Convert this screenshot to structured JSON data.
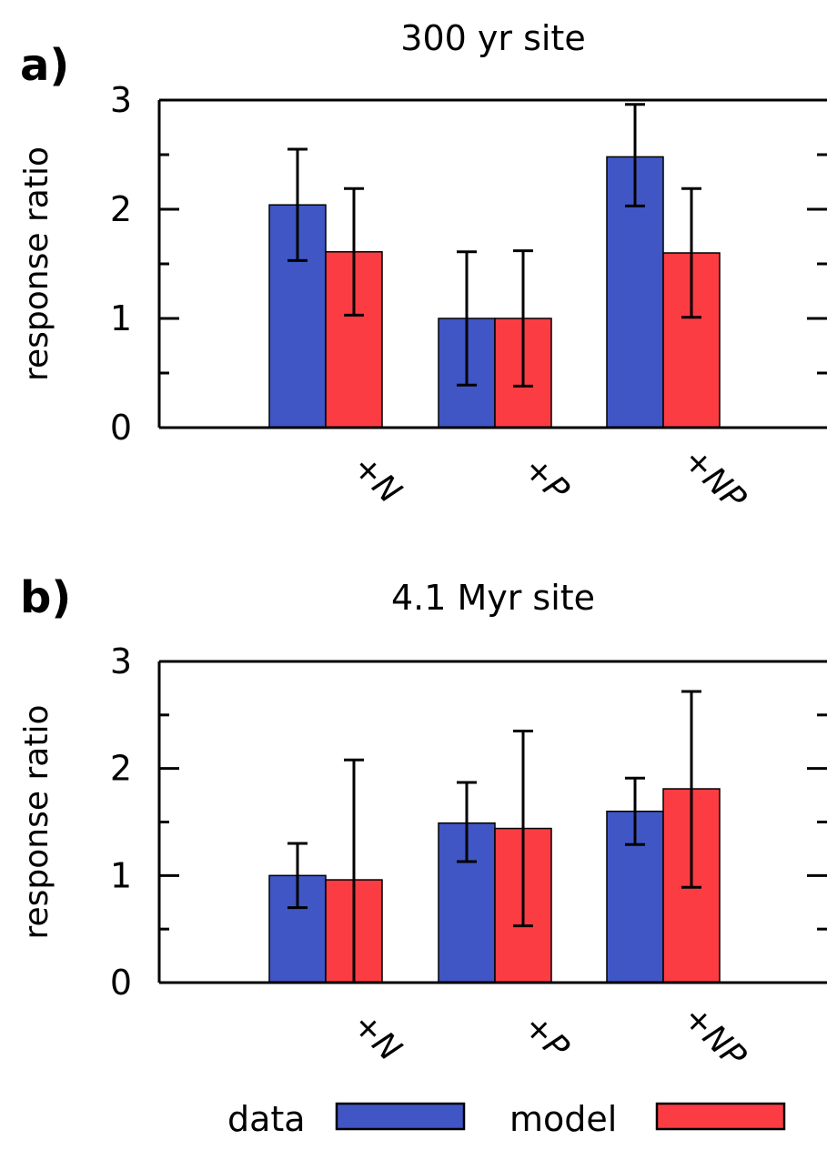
{
  "colors": {
    "data": "#3f56c4",
    "model": "#fb3c43"
  },
  "legend": [
    {
      "name": "data",
      "color": "#3f56c4"
    },
    {
      "name": "model",
      "color": "#fb3c43"
    }
  ],
  "chart_data": [
    {
      "type": "bar",
      "panel_label": "a)",
      "title": "300 yr site",
      "ylabel": "response ratio",
      "ylim": [
        0,
        3
      ],
      "yticks": [
        "0",
        "1",
        "2",
        "3"
      ],
      "categories": [
        "+N",
        "+P",
        "+NP"
      ],
      "series": [
        {
          "name": "data",
          "values": [
            2.04,
            1.0,
            2.48
          ],
          "error_low": [
            1.53,
            0.39,
            2.03
          ],
          "error_high": [
            2.55,
            1.61,
            2.96
          ]
        },
        {
          "name": "model",
          "values": [
            1.61,
            1.0,
            1.6
          ],
          "error_low": [
            1.03,
            0.38,
            1.01
          ],
          "error_high": [
            2.19,
            1.62,
            2.19
          ]
        }
      ]
    },
    {
      "type": "bar",
      "panel_label": "b)",
      "title": "4.1 Myr site",
      "ylabel": "response ratio",
      "ylim": [
        0,
        3
      ],
      "yticks": [
        "0",
        "1",
        "2",
        "3"
      ],
      "categories": [
        "+N",
        "+P",
        "+NP"
      ],
      "series": [
        {
          "name": "data",
          "values": [
            1.0,
            1.49,
            1.6
          ],
          "error_low": [
            0.7,
            1.13,
            1.29
          ],
          "error_high": [
            1.3,
            1.87,
            1.91
          ]
        },
        {
          "name": "model",
          "values": [
            0.96,
            1.44,
            1.81
          ],
          "error_low": [
            0.0,
            0.53,
            0.89
          ],
          "error_high": [
            2.08,
            2.35,
            2.72
          ]
        }
      ]
    }
  ]
}
